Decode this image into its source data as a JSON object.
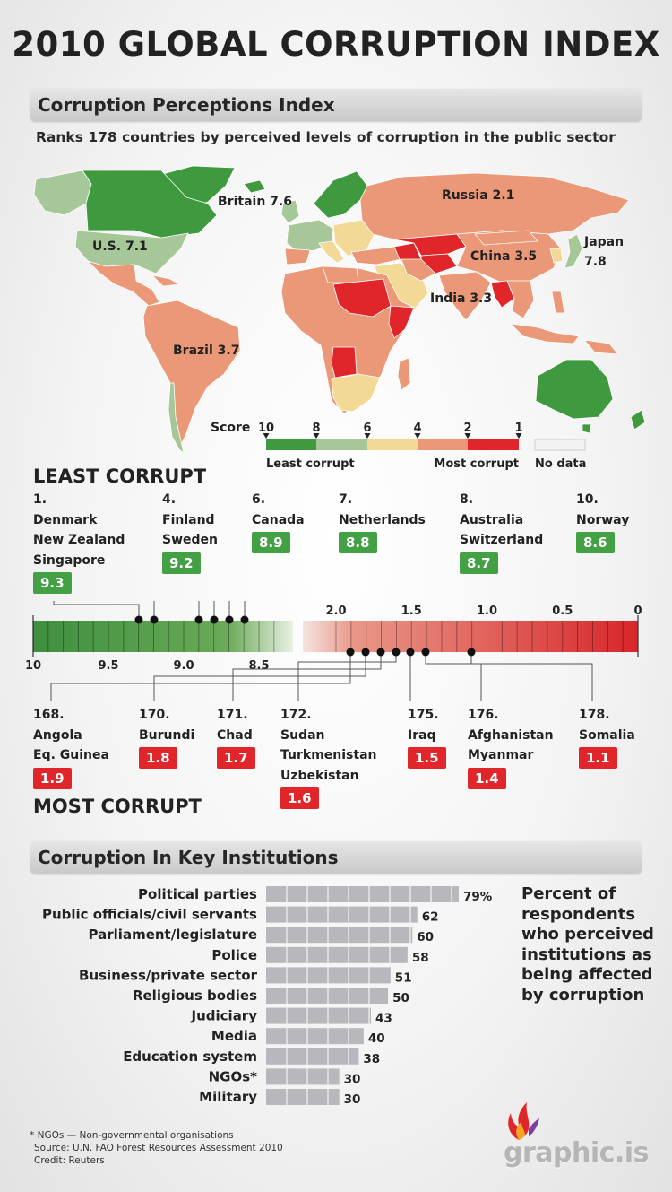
{
  "title": "2010 GLOBAL CORRUPTION INDEX",
  "section1": {
    "heading": "Corruption Perceptions Index",
    "subtitle": "Ranks 178 countries by perceived levels of corruption in the public sector"
  },
  "map": {
    "labels": {
      "britain": "Britain 7.6",
      "us": "U.S. 7.1",
      "russia": "Russia 2.1",
      "japan_1": "Japan",
      "japan_2": "7.8",
      "china": "China 3.5",
      "india": "India 3.3",
      "brazil": "Brazil 3.7"
    },
    "legend": {
      "score_label": "Score",
      "ticks": [
        "10",
        "8",
        "6",
        "4",
        "2",
        "1"
      ],
      "least": "Least corrupt",
      "most": "Most corrupt",
      "nodata": "No data",
      "colors": [
        "#3f9a3f",
        "#a6c898",
        "#f2d996",
        "#ea9878",
        "#e0262a"
      ],
      "nodata_color": "#ececec"
    }
  },
  "least": {
    "heading": "LEAST CORRUPT",
    "groups": [
      {
        "rank": "1.",
        "countries": [
          "Denmark",
          "New Zealand",
          "Singapore"
        ],
        "score": "9.3"
      },
      {
        "rank": "4.",
        "countries": [
          "Finland",
          "Sweden"
        ],
        "score": "9.2"
      },
      {
        "rank": "6.",
        "countries": [
          "Canada"
        ],
        "score": "8.9"
      },
      {
        "rank": "7.",
        "countries": [
          "Netherlands"
        ],
        "score": "8.8"
      },
      {
        "rank": "8.",
        "countries": [
          "Australia",
          "Switzerland"
        ],
        "score": "8.7"
      },
      {
        "rank": "10.",
        "countries": [
          "Norway"
        ],
        "score": "8.6"
      }
    ],
    "scale_ticks": [
      "10",
      "9.5",
      "9.0",
      "8.5"
    ]
  },
  "most": {
    "heading": "MOST CORRUPT",
    "groups": [
      {
        "rank": "168.",
        "countries": [
          "Angola",
          "Eq. Guinea"
        ],
        "score": "1.9"
      },
      {
        "rank": "170.",
        "countries": [
          "Burundi"
        ],
        "score": "1.8"
      },
      {
        "rank": "171.",
        "countries": [
          "Chad"
        ],
        "score": "1.7"
      },
      {
        "rank": "172.",
        "countries": [
          "Sudan",
          "Turkmenistan",
          "Uzbekistan"
        ],
        "score": "1.6"
      },
      {
        "rank": "175.",
        "countries": [
          "Iraq"
        ],
        "score": "1.5"
      },
      {
        "rank": "176.",
        "countries": [
          "Afghanistan",
          "Myanmar"
        ],
        "score": "1.4"
      },
      {
        "rank": "178.",
        "countries": [
          "Somalia"
        ],
        "score": "1.1"
      }
    ],
    "scale_ticks": [
      "2.0",
      "1.5",
      "1.0",
      "0.5",
      "0"
    ]
  },
  "section2": {
    "heading": "Corruption In Key Institutions",
    "description": "Percent of respondents who perceived institutions as being affected by corruption"
  },
  "chart_data": {
    "type": "bar",
    "orientation": "horizontal",
    "categories": [
      "Political parties",
      "Public officials/civil servants",
      "Parliament/legislature",
      "Police",
      "Business/private sector",
      "Religious bodies",
      "Judiciary",
      "Media",
      "Education system",
      "NGOs*",
      "Military"
    ],
    "values": [
      79,
      62,
      60,
      58,
      51,
      50,
      43,
      40,
      38,
      30,
      30
    ],
    "value_labels": [
      "79%",
      "62",
      "60",
      "58",
      "51",
      "50",
      "43",
      "40",
      "38",
      "30",
      "30"
    ],
    "bar_color": "#b8b8bc"
  },
  "footer": {
    "note": "* NGOs — Non-governmental organisations",
    "source": "Source: U.N. FAO Forest Resources Assessment 2010",
    "credit": "Credit: Reuters",
    "logo": "graphic.is"
  }
}
